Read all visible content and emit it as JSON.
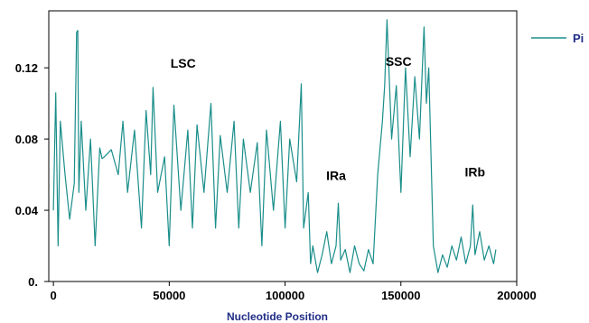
{
  "chart_data": {
    "type": "line",
    "title": "",
    "xlabel": "Nucleotide Position",
    "ylabel": "",
    "xlim": [
      -2000,
      200000
    ],
    "ylim": [
      0,
      0.152
    ],
    "grid": false,
    "legend": "top-right",
    "x_ticks": [
      0,
      50000,
      100000,
      150000,
      200000
    ],
    "x_tick_labels": [
      "0",
      "50000",
      "100000",
      "150000",
      "200000"
    ],
    "y_ticks": [
      0,
      0.04,
      0.08,
      0.12
    ],
    "y_tick_labels": [
      "0.",
      "0.04",
      "0.08",
      "0.12"
    ],
    "color": "#1a8e8a",
    "series": [
      {
        "name": "Pi",
        "x": [
          0,
          1000,
          2000,
          3000,
          5000,
          7000,
          9000,
          10000,
          10500,
          11000,
          12000,
          14000,
          16000,
          18000,
          20000,
          21000,
          22000,
          25000,
          28000,
          30000,
          32000,
          35000,
          38000,
          40000,
          42000,
          43000,
          45000,
          48000,
          50000,
          52000,
          55000,
          58000,
          60000,
          62000,
          65000,
          68000,
          70000,
          72000,
          75000,
          78000,
          80000,
          82000,
          85000,
          88000,
          90000,
          92000,
          95000,
          98000,
          100000,
          102000,
          105000,
          107000,
          108000,
          110000,
          111000,
          112000,
          114000,
          116000,
          118000,
          120000,
          122000,
          123000,
          124000,
          126000,
          128000,
          130000,
          132000,
          134000,
          136000,
          138000,
          140000,
          142000,
          143000,
          144000,
          146000,
          148000,
          150000,
          152000,
          154000,
          156000,
          158000,
          160000,
          161000,
          162000,
          164000,
          166000,
          168000,
          170000,
          172000,
          174000,
          176000,
          178000,
          180000,
          181000,
          182000,
          184000,
          186000,
          188000,
          190000,
          191000
        ],
        "y": [
          0.04,
          0.106,
          0.02,
          0.09,
          0.06,
          0.035,
          0.055,
          0.14,
          0.141,
          0.05,
          0.09,
          0.04,
          0.08,
          0.02,
          0.075,
          0.069,
          0.07,
          0.074,
          0.06,
          0.09,
          0.05,
          0.085,
          0.03,
          0.096,
          0.06,
          0.109,
          0.05,
          0.07,
          0.02,
          0.099,
          0.04,
          0.085,
          0.03,
          0.088,
          0.05,
          0.1,
          0.03,
          0.082,
          0.05,
          0.09,
          0.03,
          0.08,
          0.05,
          0.078,
          0.02,
          0.085,
          0.04,
          0.09,
          0.03,
          0.08,
          0.056,
          0.111,
          0.03,
          0.05,
          0.01,
          0.02,
          0.005,
          0.015,
          0.028,
          0.01,
          0.02,
          0.044,
          0.012,
          0.018,
          0.005,
          0.02,
          0.01,
          0.006,
          0.018,
          0.01,
          0.06,
          0.09,
          0.11,
          0.147,
          0.08,
          0.11,
          0.05,
          0.12,
          0.07,
          0.115,
          0.08,
          0.143,
          0.1,
          0.12,
          0.02,
          0.005,
          0.015,
          0.008,
          0.02,
          0.012,
          0.025,
          0.01,
          0.02,
          0.043,
          0.015,
          0.028,
          0.012,
          0.02,
          0.01,
          0.018
        ]
      }
    ],
    "annotations": [
      {
        "text": "LSC",
        "x": 56000,
        "y": 0.12
      },
      {
        "text": "IRa",
        "x": 122000,
        "y": 0.057
      },
      {
        "text": "SSC",
        "x": 149000,
        "y": 0.121
      },
      {
        "text": "IRb",
        "x": 182000,
        "y": 0.059
      }
    ]
  }
}
